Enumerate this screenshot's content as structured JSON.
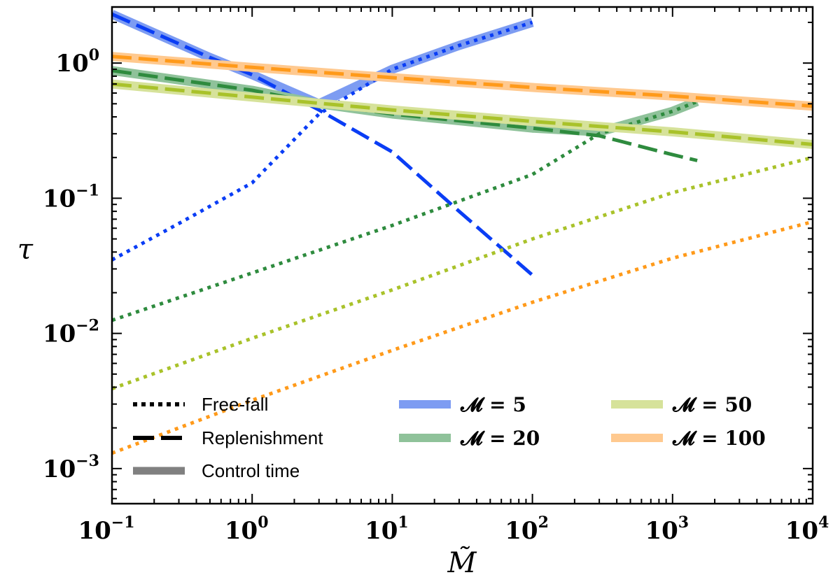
{
  "chart_data": {
    "type": "line",
    "xscale": "log",
    "yscale": "log",
    "xlim": [
      0.1,
      10000
    ],
    "ylim": [
      0.00055,
      2.6
    ],
    "xlabel": "M̃",
    "ylabel": "τ",
    "x_ticks": [
      {
        "value": 0.1,
        "base": "10",
        "exp": "−1"
      },
      {
        "value": 1,
        "base": "10",
        "exp": "0"
      },
      {
        "value": 10,
        "base": "10",
        "exp": "1"
      },
      {
        "value": 100,
        "base": "10",
        "exp": "2"
      },
      {
        "value": 1000,
        "base": "10",
        "exp": "3"
      },
      {
        "value": 10000,
        "base": "10",
        "exp": "4"
      }
    ],
    "y_ticks": [
      {
        "value": 0.001,
        "base": "10",
        "exp": "−3"
      },
      {
        "value": 0.01,
        "base": "10",
        "exp": "−2"
      },
      {
        "value": 0.1,
        "base": "10",
        "exp": "−1"
      },
      {
        "value": 1,
        "base": "10",
        "exp": "0"
      }
    ],
    "legend": {
      "styles": [
        {
          "label": "Free-fall",
          "style": "dotted"
        },
        {
          "label": "Replenishment",
          "style": "dashed"
        },
        {
          "label": "Control time",
          "style": "solid"
        }
      ],
      "colors": [
        {
          "label": "𝓜 = 5",
          "color": "#0a3df5"
        },
        {
          "label": "𝓜 = 20",
          "color": "#2e8b3e"
        },
        {
          "label": "𝓜 = 50",
          "color": "#a9c22a"
        },
        {
          "label": "𝓜 = 100",
          "color": "#ff9a1a"
        }
      ]
    },
    "series": [
      {
        "name": "𝓜 = 5",
        "color": "#0a3df5",
        "light": "#7d9cf2",
        "control": [
          [
            0.1,
            2.3
          ],
          [
            0.5,
            1.1
          ],
          [
            1,
            0.82
          ],
          [
            3,
            0.5
          ],
          [
            10,
            0.9
          ],
          [
            30,
            1.35
          ],
          [
            100,
            2.0
          ]
        ],
        "free_fall": [
          [
            0.1,
            0.035
          ],
          [
            0.3,
            0.065
          ],
          [
            1,
            0.13
          ],
          [
            3,
            0.42
          ],
          [
            10,
            0.9
          ],
          [
            30,
            1.35
          ],
          [
            100,
            2.0
          ]
        ],
        "replenishment": [
          [
            0.1,
            2.3
          ],
          [
            0.5,
            1.1
          ],
          [
            1,
            0.82
          ],
          [
            3,
            0.45
          ],
          [
            10,
            0.22
          ],
          [
            30,
            0.08
          ],
          [
            100,
            0.027
          ]
        ]
      },
      {
        "name": "𝓜 = 20",
        "color": "#2e8b3e",
        "light": "#8fc29a",
        "control": [
          [
            0.1,
            0.88
          ],
          [
            1,
            0.63
          ],
          [
            3,
            0.5
          ],
          [
            10,
            0.42
          ],
          [
            100,
            0.33
          ],
          [
            300,
            0.31
          ],
          [
            1000,
            0.44
          ],
          [
            1500,
            0.52
          ]
        ],
        "free_fall": [
          [
            0.1,
            0.0125
          ],
          [
            1,
            0.028
          ],
          [
            10,
            0.063
          ],
          [
            100,
            0.15
          ],
          [
            300,
            0.3
          ],
          [
            1000,
            0.44
          ],
          [
            1500,
            0.52
          ]
        ],
        "replenishment": [
          [
            0.1,
            0.88
          ],
          [
            1,
            0.63
          ],
          [
            3,
            0.5
          ],
          [
            10,
            0.42
          ],
          [
            100,
            0.33
          ],
          [
            300,
            0.29
          ],
          [
            1000,
            0.21
          ],
          [
            1500,
            0.19
          ]
        ]
      },
      {
        "name": "𝓜 = 50",
        "color": "#a9c22a",
        "light": "#d6e29a",
        "control": [
          [
            0.1,
            0.7
          ],
          [
            1,
            0.56
          ],
          [
            10,
            0.45
          ],
          [
            100,
            0.37
          ],
          [
            1000,
            0.31
          ],
          [
            10000,
            0.25
          ]
        ],
        "free_fall": [
          [
            0.1,
            0.0039
          ],
          [
            1,
            0.0092
          ],
          [
            10,
            0.021
          ],
          [
            100,
            0.05
          ],
          [
            1000,
            0.11
          ],
          [
            10000,
            0.2
          ]
        ],
        "replenishment": [
          [
            0.1,
            0.7
          ],
          [
            1,
            0.56
          ],
          [
            10,
            0.45
          ],
          [
            100,
            0.37
          ],
          [
            1000,
            0.31
          ],
          [
            10000,
            0.25
          ]
        ]
      },
      {
        "name": "𝓜 = 100",
        "color": "#ff9a1a",
        "light": "#ffc98f",
        "control": [
          [
            0.1,
            1.12
          ],
          [
            1,
            0.93
          ],
          [
            10,
            0.78
          ],
          [
            100,
            0.66
          ],
          [
            1000,
            0.57
          ],
          [
            10000,
            0.48
          ]
        ],
        "free_fall": [
          [
            0.1,
            0.0013
          ],
          [
            1,
            0.0032
          ],
          [
            10,
            0.0075
          ],
          [
            100,
            0.017
          ],
          [
            1000,
            0.036
          ],
          [
            10000,
            0.067
          ]
        ],
        "replenishment": [
          [
            0.1,
            1.12
          ],
          [
            1,
            0.93
          ],
          [
            10,
            0.78
          ],
          [
            100,
            0.66
          ],
          [
            1000,
            0.57
          ],
          [
            10000,
            0.48
          ]
        ]
      }
    ]
  }
}
